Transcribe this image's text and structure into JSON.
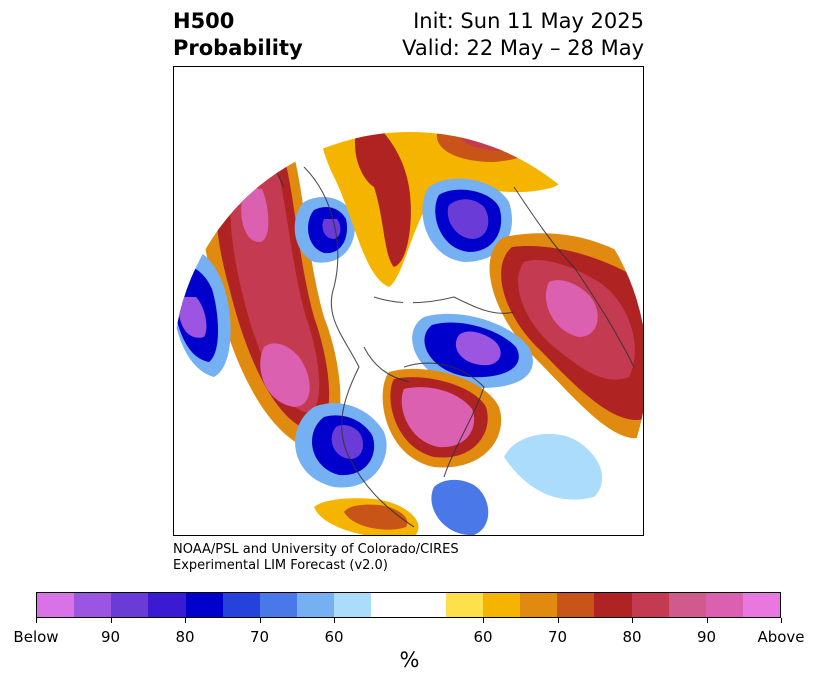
{
  "header": {
    "title_line1": "H500",
    "title_line2": "Probability",
    "init_text": "Init: Sun 11 May 2025",
    "valid_text": "Valid: 22 May – 28 May"
  },
  "credit": {
    "line1": "NOAA/PSL and University of Colorado/CIRES",
    "line2": "Experimental LIM Forecast (v2.0)"
  },
  "colorbar": {
    "colors": [
      "#d872e6",
      "#9b55e0",
      "#6a3bd6",
      "#3a1bd2",
      "#0000cc",
      "#2542dc",
      "#4a78e8",
      "#74b0f2",
      "#acdcfb",
      "#ffffff",
      "#ffffff",
      "#fde04a",
      "#f4b400",
      "#e08a10",
      "#c85418",
      "#b02323",
      "#c43a50",
      "#d05a8c",
      "#dc60b0",
      "#e878e0"
    ],
    "tick_labels": [
      "Below",
      "90",
      "80",
      "70",
      "60",
      "60",
      "70",
      "80",
      "90",
      "Above"
    ],
    "units": "%"
  },
  "map": {
    "projection": "north-polar-stereographic",
    "background": "#ffffff",
    "coastline_color": "#333333"
  }
}
